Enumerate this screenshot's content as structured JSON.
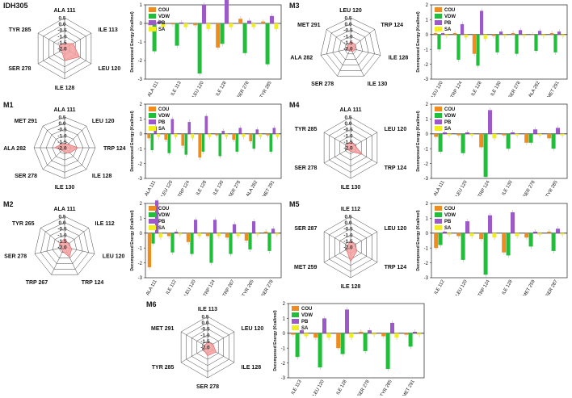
{
  "figure": {
    "radial_ticks": [
      "0.5",
      "0.0",
      "-0.5",
      "-1.0",
      "-1.5",
      "-2.0"
    ],
    "colors": {
      "COU": "#f08c1e",
      "VDW": "#1fbf3a",
      "PB": "#9b59c9",
      "SA": "#f2ee1b",
      "radar_fill": "#f4a0a0",
      "radar_stroke": "#e06060"
    },
    "legend": [
      "COU",
      "VDW",
      "PB",
      "SA"
    ]
  },
  "chart_data": [
    {
      "id": "IDH305",
      "type": "bar",
      "title": "IDH305",
      "ylabel": "Decomposed Energy (Kcal/mol)",
      "ylim": [
        -3,
        1
      ],
      "yticks": [
        "1",
        "0",
        "-1",
        "-2",
        "-3"
      ],
      "categories": [
        "ALA 111",
        "ILE 113",
        "LEU 120",
        "ILE 128",
        "SER 278",
        "TYR 285"
      ],
      "series": [
        {
          "name": "COU",
          "values": [
            -0.1,
            -0.05,
            -0.1,
            -1.3,
            0.25,
            0.1
          ]
        },
        {
          "name": "VDW",
          "values": [
            -1.5,
            -1.2,
            -2.7,
            -1.1,
            -1.6,
            -2.2
          ]
        },
        {
          "name": "PB",
          "values": [
            0.1,
            0.05,
            1.0,
            1.4,
            0.15,
            0.4
          ]
        },
        {
          "name": "SA",
          "values": [
            -0.2,
            -0.2,
            -0.3,
            -0.2,
            -0.2,
            -0.3
          ]
        }
      ],
      "radar": {
        "axes": [
          "ALA 111",
          "ILE 113",
          "LEU 120",
          "ILE 128",
          "SER 278",
          "TYR 285"
        ],
        "values": [
          -1.6,
          -1.2,
          -0.6,
          -1.0,
          -1.7,
          -1.5
        ]
      }
    },
    {
      "id": "M3",
      "type": "bar",
      "title": "M3",
      "ylabel": "Decomposed Energy (Kcal/mol)",
      "ylim": [
        -3,
        2
      ],
      "yticks": [
        "2",
        "1",
        "0",
        "-1",
        "-2",
        "-3"
      ],
      "categories": [
        "LEU 120",
        "TRP 124",
        "ILE 128",
        "ILE 130",
        "SER 278",
        "ALA 282",
        "MET 291"
      ],
      "series": [
        {
          "name": "COU",
          "values": [
            0.1,
            0.1,
            -1.3,
            -0.1,
            0.1,
            0.0,
            0.1
          ]
        },
        {
          "name": "VDW",
          "values": [
            -1.0,
            -1.7,
            -2.1,
            -1.2,
            -1.3,
            -1.1,
            -1.2
          ]
        },
        {
          "name": "PB",
          "values": [
            0.1,
            0.7,
            1.6,
            0.2,
            0.3,
            0.25,
            0.2
          ]
        },
        {
          "name": "SA",
          "values": [
            -0.1,
            -0.2,
            -0.3,
            -0.1,
            -0.1,
            -0.1,
            -0.1
          ]
        }
      ],
      "radar": {
        "axes": [
          "LEU 120",
          "TRP 124",
          "ILE 128",
          "ILE 130",
          "SER 278",
          "ALA 282",
          "MET 291"
        ],
        "values": [
          -1.4,
          -1.5,
          -1.6,
          -1.7,
          -1.8,
          -1.6,
          -1.7
        ]
      }
    },
    {
      "id": "M1",
      "type": "bar",
      "title": "M1",
      "ylabel": "Decomposed Energy (Kcal/mol)",
      "ylim": [
        -3,
        2
      ],
      "yticks": [
        "2",
        "1",
        "0",
        "-1",
        "-2",
        "-3"
      ],
      "categories": [
        "ALA 111",
        "LEU 120",
        "TRP 124",
        "ILE 128",
        "ILE 130",
        "SER 278",
        "ALA 282",
        "MET 291"
      ],
      "series": [
        {
          "name": "COU",
          "values": [
            -0.3,
            -0.4,
            -0.8,
            -1.6,
            -0.1,
            -0.4,
            -0.5,
            -0.1
          ]
        },
        {
          "name": "VDW",
          "values": [
            -1.1,
            -1.3,
            -1.4,
            -1.2,
            -1.5,
            -1.2,
            -1.0,
            -1.2
          ]
        },
        {
          "name": "PB",
          "values": [
            0.5,
            1.0,
            0.8,
            1.2,
            0.2,
            0.4,
            0.3,
            0.4
          ]
        },
        {
          "name": "SA",
          "values": [
            -0.2,
            -0.2,
            -0.3,
            -0.2,
            -0.2,
            -0.2,
            -0.2,
            -0.2
          ]
        }
      ],
      "radar": {
        "axes": [
          "ALA 111",
          "LEU 120",
          "TRP 124",
          "ILE 128",
          "ILE 130",
          "SER 278",
          "ALA 282",
          "MET 291"
        ],
        "values": [
          -1.7,
          -1.6,
          -0.9,
          -1.4,
          -1.6,
          -1.7,
          -1.2,
          -1.6
        ]
      }
    },
    {
      "id": "M4",
      "type": "bar",
      "title": "M4",
      "ylabel": "Decomposed Energy (Kcal/mol)",
      "ylim": [
        -3,
        2
      ],
      "yticks": [
        "2",
        "1",
        "0",
        "-1",
        "-2",
        "-3"
      ],
      "categories": [
        "ALA 111",
        "LEU 120",
        "TRP 124",
        "ILE 130",
        "SER 278",
        "TYR 285"
      ],
      "series": [
        {
          "name": "COU",
          "values": [
            -0.2,
            -0.1,
            -0.9,
            -0.1,
            -0.6,
            -0.3
          ]
        },
        {
          "name": "VDW",
          "values": [
            -1.2,
            -1.3,
            -2.9,
            -1.0,
            -0.6,
            -1.0
          ]
        },
        {
          "name": "PB",
          "values": [
            0.1,
            0.1,
            1.6,
            0.1,
            0.3,
            0.4
          ]
        },
        {
          "name": "SA",
          "values": [
            -0.1,
            -0.1,
            -0.3,
            -0.1,
            -0.1,
            -0.1
          ]
        }
      ],
      "radar": {
        "axes": [
          "ALA 111",
          "LEU 120",
          "TRP 124",
          "ILE 130",
          "SER 278",
          "TYR 285"
        ],
        "values": [
          -1.5,
          -1.6,
          -0.9,
          -1.7,
          -1.7,
          -1.6
        ]
      }
    },
    {
      "id": "M2",
      "type": "bar",
      "title": "M2",
      "ylabel": "Decomposed Energy (Kcal/mol)",
      "ylim": [
        -3,
        2
      ],
      "yticks": [
        "2",
        "1",
        "0",
        "-1",
        "-2",
        "-3"
      ],
      "categories": [
        "ALA 111",
        "ILE 112",
        "LEU 120",
        "TRP 124",
        "TRP 267",
        "TYR 265",
        "SER 278"
      ],
      "series": [
        {
          "name": "COU",
          "values": [
            -2.3,
            -0.2,
            -0.6,
            -0.2,
            -0.3,
            -0.5,
            0.1
          ]
        },
        {
          "name": "VDW",
          "values": [
            -0.7,
            -1.3,
            -1.4,
            -2.0,
            -1.4,
            -1.1,
            -1.2
          ]
        },
        {
          "name": "PB",
          "values": [
            2.2,
            0.1,
            0.9,
            0.9,
            0.6,
            0.8,
            0.3
          ]
        },
        {
          "name": "SA",
          "values": [
            -0.3,
            -0.1,
            -0.2,
            -0.2,
            -0.2,
            -0.1,
            -0.1
          ]
        }
      ],
      "radar": {
        "axes": [
          "ALA 111",
          "ILE 112",
          "LEU 120",
          "TRP 124",
          "TRP 267",
          "SER 278",
          "TYR 265"
        ],
        "values": [
          -1.3,
          -1.6,
          -1.4,
          -1.1,
          -1.6,
          -1.7,
          -1.5
        ]
      }
    },
    {
      "id": "M5",
      "type": "bar",
      "title": "M5",
      "ylabel": "Decomposed Energy (Kcal/mol)",
      "ylim": [
        -3,
        2
      ],
      "yticks": [
        "2",
        "1",
        "0",
        "-1",
        "-2",
        "-3"
      ],
      "categories": [
        "ILE 112",
        "LEU 120",
        "TRP 124",
        "ILE 128",
        "MET 259",
        "SER 287"
      ],
      "series": [
        {
          "name": "COU",
          "values": [
            -1.0,
            -0.2,
            -0.4,
            -1.3,
            -0.3,
            0.1
          ]
        },
        {
          "name": "VDW",
          "values": [
            -0.8,
            -1.8,
            -2.8,
            -1.5,
            -0.9,
            -1.2
          ]
        },
        {
          "name": "PB",
          "values": [
            0.1,
            0.8,
            1.2,
            1.4,
            0.1,
            0.3
          ]
        },
        {
          "name": "SA",
          "values": [
            -0.1,
            -0.2,
            -0.3,
            -0.2,
            -0.1,
            -0.1
          ]
        }
      ],
      "radar": {
        "axes": [
          "ILE 112",
          "LEU 120",
          "TRP 124",
          "ILE 128",
          "MET 259",
          "SER 287"
        ],
        "values": [
          -1.5,
          -1.6,
          -1.4,
          -0.8,
          -1.6,
          -1.7
        ]
      }
    },
    {
      "id": "M6",
      "type": "bar",
      "title": "M6",
      "ylabel": "Decomposed Energy (Kcal/mol)",
      "ylim": [
        -3,
        2
      ],
      "yticks": [
        "2",
        "1",
        "0",
        "-1",
        "-2",
        "-3"
      ],
      "categories": [
        "ILE 113",
        "LEU 120",
        "ILE 128",
        "SER 278",
        "TYR 285",
        "MET 291"
      ],
      "series": [
        {
          "name": "COU",
          "values": [
            -0.1,
            -0.3,
            -1.0,
            0.1,
            -0.2,
            -0.1
          ]
        },
        {
          "name": "VDW",
          "values": [
            -1.6,
            -2.3,
            -1.4,
            -1.2,
            -2.4,
            -0.9
          ]
        },
        {
          "name": "PB",
          "values": [
            0.2,
            1.0,
            1.6,
            0.2,
            0.7,
            0.1
          ]
        },
        {
          "name": "SA",
          "values": [
            -0.2,
            -0.3,
            -0.3,
            -0.1,
            -0.3,
            -0.1
          ]
        }
      ],
      "radar": {
        "axes": [
          "ILE 113",
          "LEU 120",
          "ILE 128",
          "SER 278",
          "TYR 285",
          "MET 291"
        ],
        "values": [
          -1.6,
          -1.5,
          -1.2,
          -1.3,
          -1.6,
          -1.7
        ]
      }
    }
  ]
}
